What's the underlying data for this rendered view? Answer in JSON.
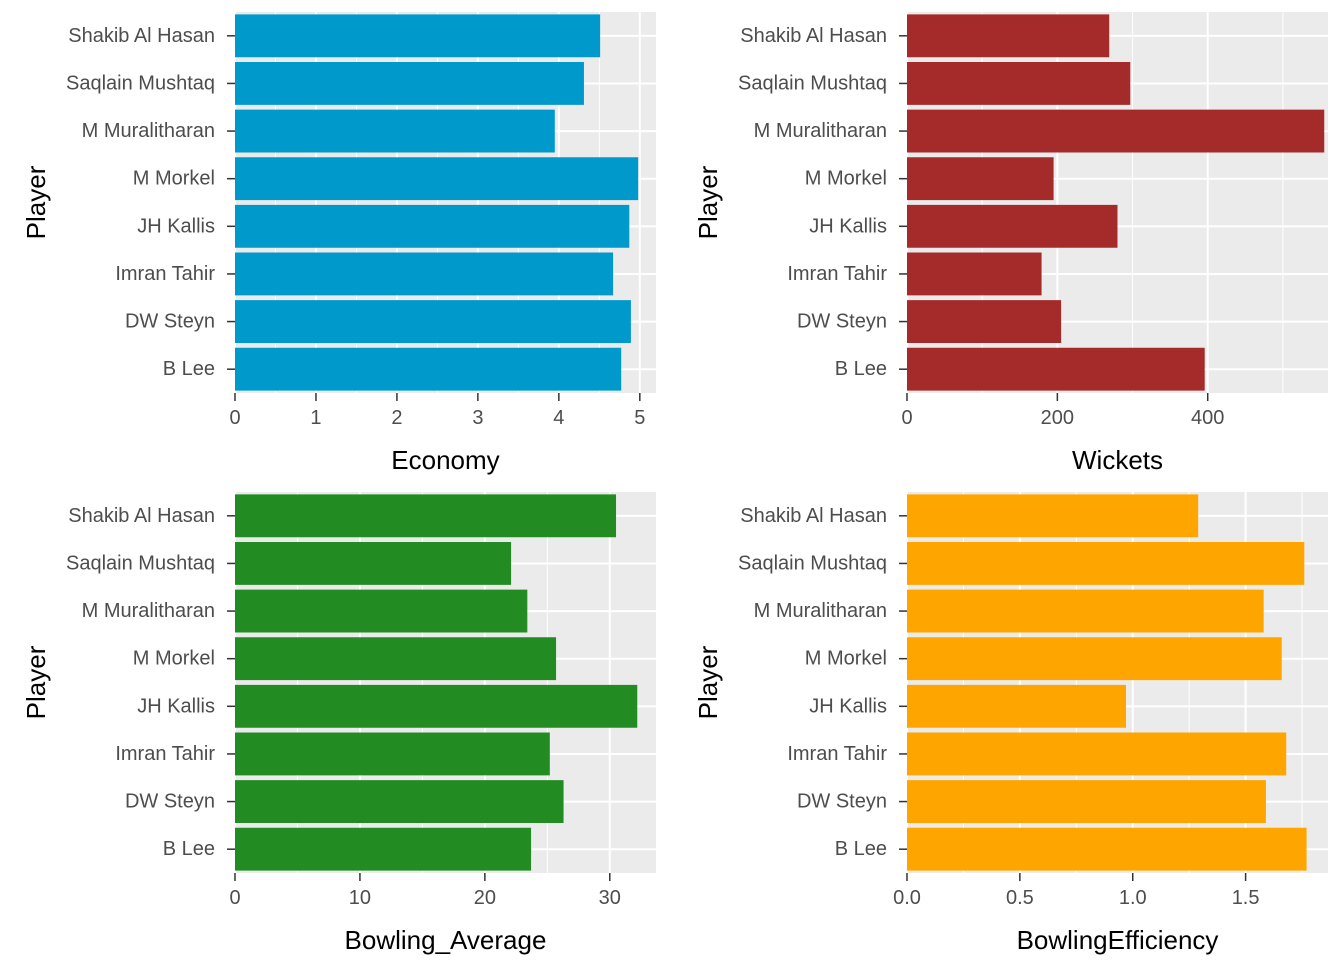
{
  "chart_data": [
    {
      "type": "bar",
      "orientation": "horizontal",
      "xlabel": "Economy",
      "ylabel": "Player",
      "xlim": [
        0,
        5.2
      ],
      "xticks": [
        0,
        1,
        2,
        3,
        4,
        5
      ],
      "color": "#0099cc",
      "grid": true,
      "categories": [
        "Shakib Al Hasan",
        "Saqlain Mushtaq",
        "M Muralitharan",
        "M Morkel",
        "JH Kallis",
        "Imran Tahir",
        "DW Steyn",
        "B Lee"
      ],
      "values": [
        4.51,
        4.31,
        3.95,
        4.98,
        4.87,
        4.67,
        4.89,
        4.77
      ]
    },
    {
      "type": "bar",
      "orientation": "horizontal",
      "xlabel": "Wickets",
      "ylabel": "Player",
      "xlim": [
        0,
        560
      ],
      "xticks": [
        0,
        200,
        400
      ],
      "color": "#a52a2a",
      "grid": true,
      "categories": [
        "Shakib Al Hasan",
        "Saqlain Mushtaq",
        "M Muralitharan",
        "M Morkel",
        "JH Kallis",
        "Imran Tahir",
        "DW Steyn",
        "B Lee"
      ],
      "values": [
        269,
        297,
        555,
        195,
        280,
        179,
        205,
        396
      ]
    },
    {
      "type": "bar",
      "orientation": "horizontal",
      "xlabel": "Bowling_Average",
      "ylabel": "Player",
      "xlim": [
        0,
        33.7
      ],
      "xticks": [
        0,
        10,
        20,
        30
      ],
      "color": "#228b22",
      "grid": true,
      "categories": [
        "Shakib Al Hasan",
        "Saqlain Mushtaq",
        "M Muralitharan",
        "M Morkel",
        "JH Kallis",
        "Imran Tahir",
        "DW Steyn",
        "B Lee"
      ],
      "values": [
        30.5,
        22.1,
        23.4,
        25.7,
        32.2,
        25.2,
        26.3,
        23.7
      ]
    },
    {
      "type": "bar",
      "orientation": "horizontal",
      "xlabel": "BowlingEfficiency",
      "ylabel": "Player",
      "xlim": [
        0,
        1.865
      ],
      "xticks": [
        0.0,
        0.5,
        1.0,
        1.5
      ],
      "xtick_labels": [
        "0.0",
        "0.5",
        "1.0",
        "1.5"
      ],
      "color": "#ffa500",
      "grid": true,
      "categories": [
        "Shakib Al Hasan",
        "Saqlain Mushtaq",
        "M Muralitharan",
        "M Morkel",
        "JH Kallis",
        "Imran Tahir",
        "DW Steyn",
        "B Lee"
      ],
      "values": [
        1.29,
        1.76,
        1.58,
        1.66,
        0.97,
        1.68,
        1.59,
        1.77
      ]
    }
  ]
}
